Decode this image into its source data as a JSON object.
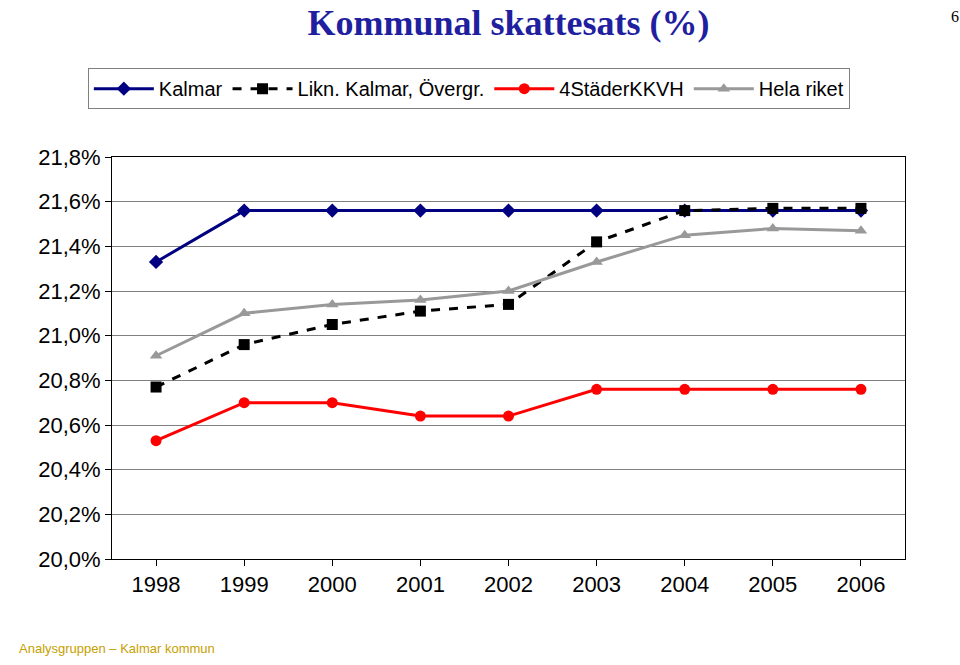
{
  "chart_data": {
    "type": "line",
    "title": "Kommunal skattesats (%)",
    "page_number": "6",
    "footer": "Analysgruppen – Kalmar kommun",
    "categories": [
      "1998",
      "1999",
      "2000",
      "2001",
      "2002",
      "2003",
      "2004",
      "2005",
      "2006"
    ],
    "series": [
      {
        "name": "Kalmar",
        "color": "#000080",
        "marker": "diamond",
        "line_style": "solid",
        "values": [
          21.33,
          21.56,
          21.56,
          21.56,
          21.56,
          21.56,
          21.56,
          21.56,
          21.56
        ]
      },
      {
        "name": "Likn. Kalmar, Övergr.",
        "color": "#000000",
        "marker": "square",
        "line_style": "dashed",
        "values": [
          20.77,
          20.96,
          21.05,
          21.11,
          21.14,
          21.42,
          21.56,
          21.57,
          21.57
        ]
      },
      {
        "name": "4StäderKKVH",
        "color": "#ff0000",
        "marker": "circle",
        "line_style": "solid",
        "values": [
          20.53,
          20.7,
          20.7,
          20.64,
          20.64,
          20.76,
          20.76,
          20.76,
          20.76
        ]
      },
      {
        "name": "Hela riket",
        "color": "#999999",
        "marker": "triangle-up",
        "line_style": "solid",
        "values": [
          20.91,
          21.1,
          21.14,
          21.16,
          21.2,
          21.33,
          21.45,
          21.48,
          21.47
        ]
      }
    ],
    "ylim": [
      20.0,
      21.8
    ],
    "yticks": [
      {
        "value": 20.0,
        "label": "20,0%"
      },
      {
        "value": 20.2,
        "label": "20,2%"
      },
      {
        "value": 20.4,
        "label": "20,4%"
      },
      {
        "value": 20.6,
        "label": "20,6%"
      },
      {
        "value": 20.8,
        "label": "20,8%"
      },
      {
        "value": 21.0,
        "label": "21,0%"
      },
      {
        "value": 21.2,
        "label": "21,2%"
      },
      {
        "value": 21.4,
        "label": "21,4%"
      },
      {
        "value": 21.6,
        "label": "21,6%"
      },
      {
        "value": 21.8,
        "label": "21,8%"
      }
    ],
    "grid": true,
    "legend": "top"
  }
}
